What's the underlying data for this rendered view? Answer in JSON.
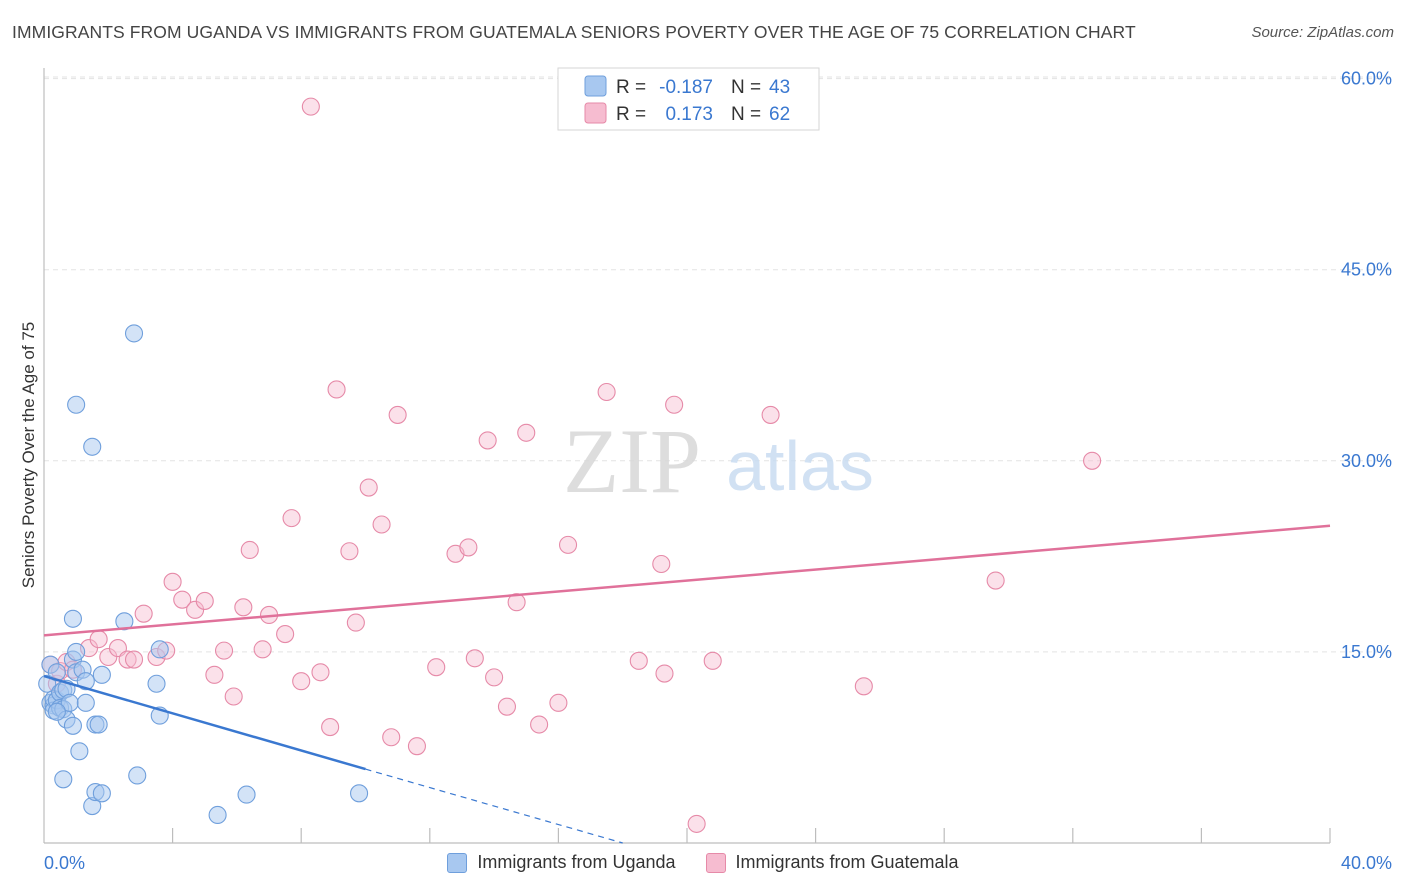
{
  "header": {
    "title": "IMMIGRANTS FROM UGANDA VS IMMIGRANTS FROM GUATEMALA SENIORS POVERTY OVER THE AGE OF 75 CORRELATION CHART",
    "source": "Source: ZipAtlas.com"
  },
  "watermark": {
    "zip": "ZIP",
    "atlas": "atlas"
  },
  "legend_stats": {
    "r_label": "R =",
    "n_label": "N =",
    "rows": [
      {
        "r": "-0.187",
        "n": "43"
      },
      {
        "r": "0.173",
        "n": "62"
      }
    ]
  },
  "chart_data": {
    "type": "scatter",
    "title": "IMMIGRANTS FROM UGANDA VS IMMIGRANTS FROM GUATEMALA SENIORS POVERTY OVER THE AGE OF 75 CORRELATION CHART",
    "xlabel": "",
    "ylabel": "Seniors Poverty Over the Age of 75",
    "xlim": [
      0,
      40
    ],
    "ylim": [
      0,
      63
    ],
    "x_tick_labels": [
      "0.0%",
      "40.0%"
    ],
    "y_ticks": [
      15,
      30,
      45,
      60
    ],
    "y_tick_labels": [
      "15.0%",
      "30.0%",
      "45.0%",
      "60.0%"
    ],
    "grid": true,
    "legend_position": "bottom",
    "colors": {
      "uganda_fill": "#a8c8f0",
      "uganda_stroke": "#6f9fdc",
      "uganda_line": "#3a78d0",
      "guatemala_fill": "#f6bcd0",
      "guatemala_stroke": "#e68aa8",
      "guatemala_line": "#e0719a",
      "tick_label": "#3a78d0"
    },
    "series": [
      {
        "name": "Immigrants from Uganda",
        "trend": {
          "x": [
            0,
            10
          ],
          "y": [
            13.1,
            5.8
          ],
          "dashed_to": [
            18,
            0
          ]
        },
        "points": [
          [
            0.1,
            12.5
          ],
          [
            0.2,
            14
          ],
          [
            0.2,
            11
          ],
          [
            0.3,
            10.8
          ],
          [
            0.3,
            11.3
          ],
          [
            0.3,
            10.4
          ],
          [
            0.4,
            13.4
          ],
          [
            0.4,
            11.2
          ],
          [
            0.5,
            11.8
          ],
          [
            0.5,
            10.6
          ],
          [
            0.6,
            12
          ],
          [
            0.6,
            10.5
          ],
          [
            0.7,
            12.1
          ],
          [
            0.7,
            9.7
          ],
          [
            0.8,
            11
          ],
          [
            0.9,
            17.6
          ],
          [
            0.9,
            14.4
          ],
          [
            0.9,
            9.2
          ],
          [
            1.0,
            15
          ],
          [
            1.0,
            13.4
          ],
          [
            1.1,
            7.2
          ],
          [
            1.2,
            13.6
          ],
          [
            1.3,
            11
          ],
          [
            1.3,
            12.7
          ],
          [
            0.6,
            5
          ],
          [
            1.0,
            34.4
          ],
          [
            1.5,
            31.1
          ],
          [
            1.5,
            2.9
          ],
          [
            1.6,
            9.3
          ],
          [
            1.6,
            4
          ],
          [
            1.7,
            9.3
          ],
          [
            1.8,
            13.2
          ],
          [
            1.8,
            3.9
          ],
          [
            2.5,
            17.4
          ],
          [
            2.8,
            40
          ],
          [
            2.9,
            5.3
          ],
          [
            3.5,
            12.5
          ],
          [
            3.6,
            15.2
          ],
          [
            3.6,
            10
          ],
          [
            5.4,
            2.2
          ],
          [
            6.3,
            3.8
          ],
          [
            9.8,
            3.9
          ],
          [
            0.4,
            10.3
          ]
        ]
      },
      {
        "name": "Immigrants from Guatemala",
        "trend": {
          "x": [
            0,
            40
          ],
          "y": [
            16.3,
            24.9
          ]
        },
        "points": [
          [
            0.2,
            14
          ],
          [
            0.4,
            12.5
          ],
          [
            0.5,
            13.5
          ],
          [
            0.7,
            14.2
          ],
          [
            0.9,
            13.6
          ],
          [
            1.4,
            15.3
          ],
          [
            1.7,
            16
          ],
          [
            2.0,
            14.6
          ],
          [
            2.3,
            15.3
          ],
          [
            2.6,
            14.4
          ],
          [
            2.8,
            14.4
          ],
          [
            3.1,
            18
          ],
          [
            3.5,
            14.6
          ],
          [
            3.8,
            15.1
          ],
          [
            4.0,
            20.5
          ],
          [
            4.3,
            19.1
          ],
          [
            4.7,
            18.3
          ],
          [
            5.0,
            19
          ],
          [
            5.3,
            13.2
          ],
          [
            5.6,
            15.1
          ],
          [
            5.9,
            11.5
          ],
          [
            6.2,
            18.5
          ],
          [
            6.4,
            23
          ],
          [
            6.8,
            15.2
          ],
          [
            7.0,
            17.9
          ],
          [
            7.5,
            16.4
          ],
          [
            7.7,
            25.5
          ],
          [
            8.0,
            12.7
          ],
          [
            8.3,
            57.8
          ],
          [
            8.6,
            13.4
          ],
          [
            8.9,
            9.1
          ],
          [
            9.1,
            35.6
          ],
          [
            9.5,
            22.9
          ],
          [
            9.7,
            17.3
          ],
          [
            10.1,
            27.9
          ],
          [
            10.5,
            25
          ],
          [
            10.8,
            8.3
          ],
          [
            11.0,
            33.6
          ],
          [
            11.6,
            7.6
          ],
          [
            12.2,
            13.8
          ],
          [
            12.8,
            22.7
          ],
          [
            13.2,
            23.2
          ],
          [
            13.4,
            14.5
          ],
          [
            13.8,
            31.6
          ],
          [
            14.0,
            13
          ],
          [
            14.4,
            10.7
          ],
          [
            14.7,
            18.9
          ],
          [
            15.0,
            32.2
          ],
          [
            15.4,
            9.3
          ],
          [
            16.0,
            11
          ],
          [
            16.3,
            23.4
          ],
          [
            17.5,
            35.4
          ],
          [
            18.5,
            14.3
          ],
          [
            19.2,
            21.9
          ],
          [
            19.3,
            13.3
          ],
          [
            19.6,
            34.4
          ],
          [
            20.3,
            1.5
          ],
          [
            20.8,
            14.3
          ],
          [
            22.6,
            33.6
          ],
          [
            25.5,
            12.3
          ],
          [
            29.6,
            20.6
          ],
          [
            32.6,
            30
          ]
        ]
      }
    ]
  }
}
